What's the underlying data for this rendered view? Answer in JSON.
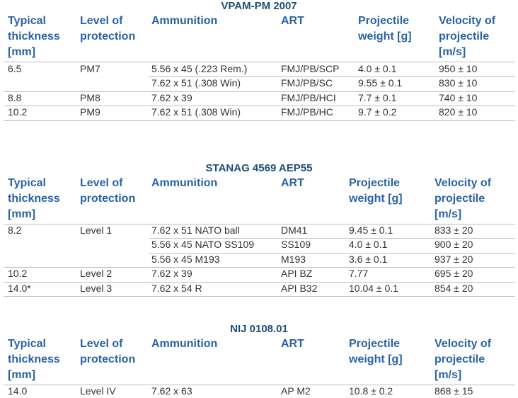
{
  "tables": [
    {
      "title": "VPAM-PM 2007",
      "header": [
        [
          "Typical",
          "thickness",
          "[mm]"
        ],
        [
          "Level of",
          "protection"
        ],
        [
          "Ammunition"
        ],
        [
          "ART"
        ],
        [
          "Projectile",
          "weight [g]"
        ],
        [
          "Velocity of",
          "projectile",
          "[m/s]"
        ]
      ],
      "rows": [
        [
          "6.5",
          "PM7",
          "5.56 x 45 (.223 Rem.)",
          "FMJ/PB/SCP",
          "4.0 ± 0.1",
          "950 ± 10"
        ],
        [
          null,
          null,
          "7.62 x 51 (.308 Win)",
          "FMJ/PB/SC",
          "9.55 ± 0.1",
          "830 ± 10"
        ],
        [
          "8.8",
          "PM8",
          "7.62 x 39",
          "FMJ/PB/HCI",
          "7.7 ± 0.1",
          "740 ± 10"
        ],
        [
          "10.2",
          "PM9",
          "7.62 x 51 (.308 Win)",
          "FMJ/PB/HC",
          "9.7 ± 0.2",
          "820 ± 10"
        ]
      ]
    },
    {
      "title": "STANAG 4569 AEP55",
      "header": [
        [
          "Typical",
          "thickness",
          "[mm]"
        ],
        [
          "Level of",
          "protection"
        ],
        [
          "Ammunition"
        ],
        [
          "ART"
        ],
        [
          "Projectile",
          "weight [g]"
        ],
        [
          "Velocity of",
          "projectile",
          "[m/s]"
        ]
      ],
      "rows": [
        [
          "8.2",
          "Level 1",
          "7.62 x 51 NATO ball",
          "DM41",
          "9.45 ± 0.1",
          "833 ± 20"
        ],
        [
          null,
          null,
          "5.56 x 45 NATO SS109",
          "SS109",
          "4.0 ± 0.1",
          "900 ± 20"
        ],
        [
          null,
          null,
          "5.56 x 45 M193",
          "M193",
          "3.6 ± 0.1",
          "937 ± 20"
        ],
        [
          "10.2",
          "Level 2",
          "7.62 x 39",
          "API BZ",
          "7.77",
          "695 ± 20"
        ],
        [
          "14.0*",
          "Level 3",
          "7.62 x 54 R",
          "API B32",
          "10.04 ± 0.1",
          "854 ± 20"
        ]
      ]
    },
    {
      "title": "NIJ 0108.01",
      "header": [
        [
          "Typical",
          "thickness",
          "[mm]"
        ],
        [
          "Level of",
          "protection"
        ],
        [
          "Ammunition"
        ],
        [
          "ART"
        ],
        [
          "Projectile",
          "weight [g]"
        ],
        [
          "Velocity of",
          "projectile",
          "[m/s]"
        ]
      ],
      "rows": [
        [
          "14.0",
          "Level IV",
          "7.62 x 63",
          "AP M2",
          "10.8 ± 0.2",
          "868 ± 15"
        ]
      ]
    }
  ]
}
